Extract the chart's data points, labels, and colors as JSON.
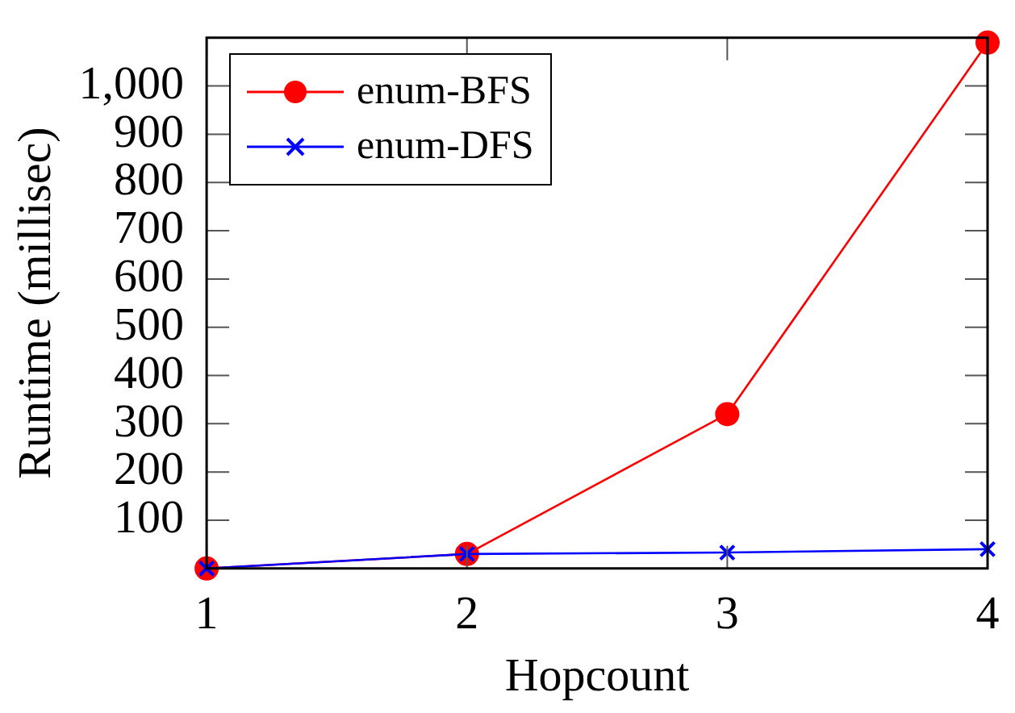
{
  "chart_data": {
    "type": "line",
    "xlabel": "Hopcount",
    "ylabel": "Runtime (millisec)",
    "x": [
      1,
      2,
      3,
      4
    ],
    "series": [
      {
        "name": "enum-BFS",
        "color": "#ff0000",
        "marker": "circle",
        "values": [
          0,
          30,
          320,
          1090
        ]
      },
      {
        "name": "enum-DFS",
        "color": "#0000ff",
        "marker": "cross",
        "values": [
          0,
          30,
          33,
          40
        ]
      }
    ],
    "xlim": [
      1,
      4
    ],
    "xticks": [
      1,
      2,
      3,
      4
    ],
    "ylim": [
      0,
      1100
    ],
    "yticks": [
      100,
      200,
      300,
      400,
      500,
      600,
      700,
      800,
      900,
      {
        "value": 1000,
        "label": "1,000"
      }
    ],
    "grid": false,
    "legend": "top left",
    "line_style": "solid"
  }
}
